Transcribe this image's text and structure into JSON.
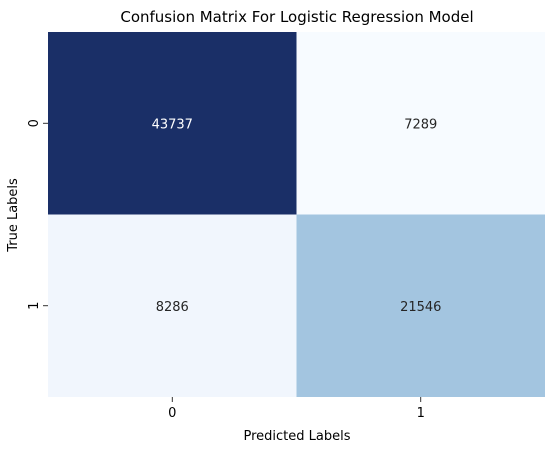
{
  "chart_data": {
    "type": "heatmap",
    "title": "Confusion Matrix For Logistic Regression Model",
    "xlabel": "Predicted Labels",
    "ylabel": "True Labels",
    "x_categories": [
      "0",
      "1"
    ],
    "y_categories": [
      "0",
      "1"
    ],
    "values": [
      [
        43737,
        7289
      ],
      [
        8286,
        21546
      ]
    ],
    "cell_colors": [
      [
        "#1a2f67",
        "#f7fbff"
      ],
      [
        "#f1f6fd",
        "#a3c5e0"
      ]
    ],
    "text_colors": [
      [
        "#ffffff",
        "#262626"
      ],
      [
        "#262626",
        "#262626"
      ]
    ],
    "colorbar": false,
    "cmap": "Blues"
  }
}
